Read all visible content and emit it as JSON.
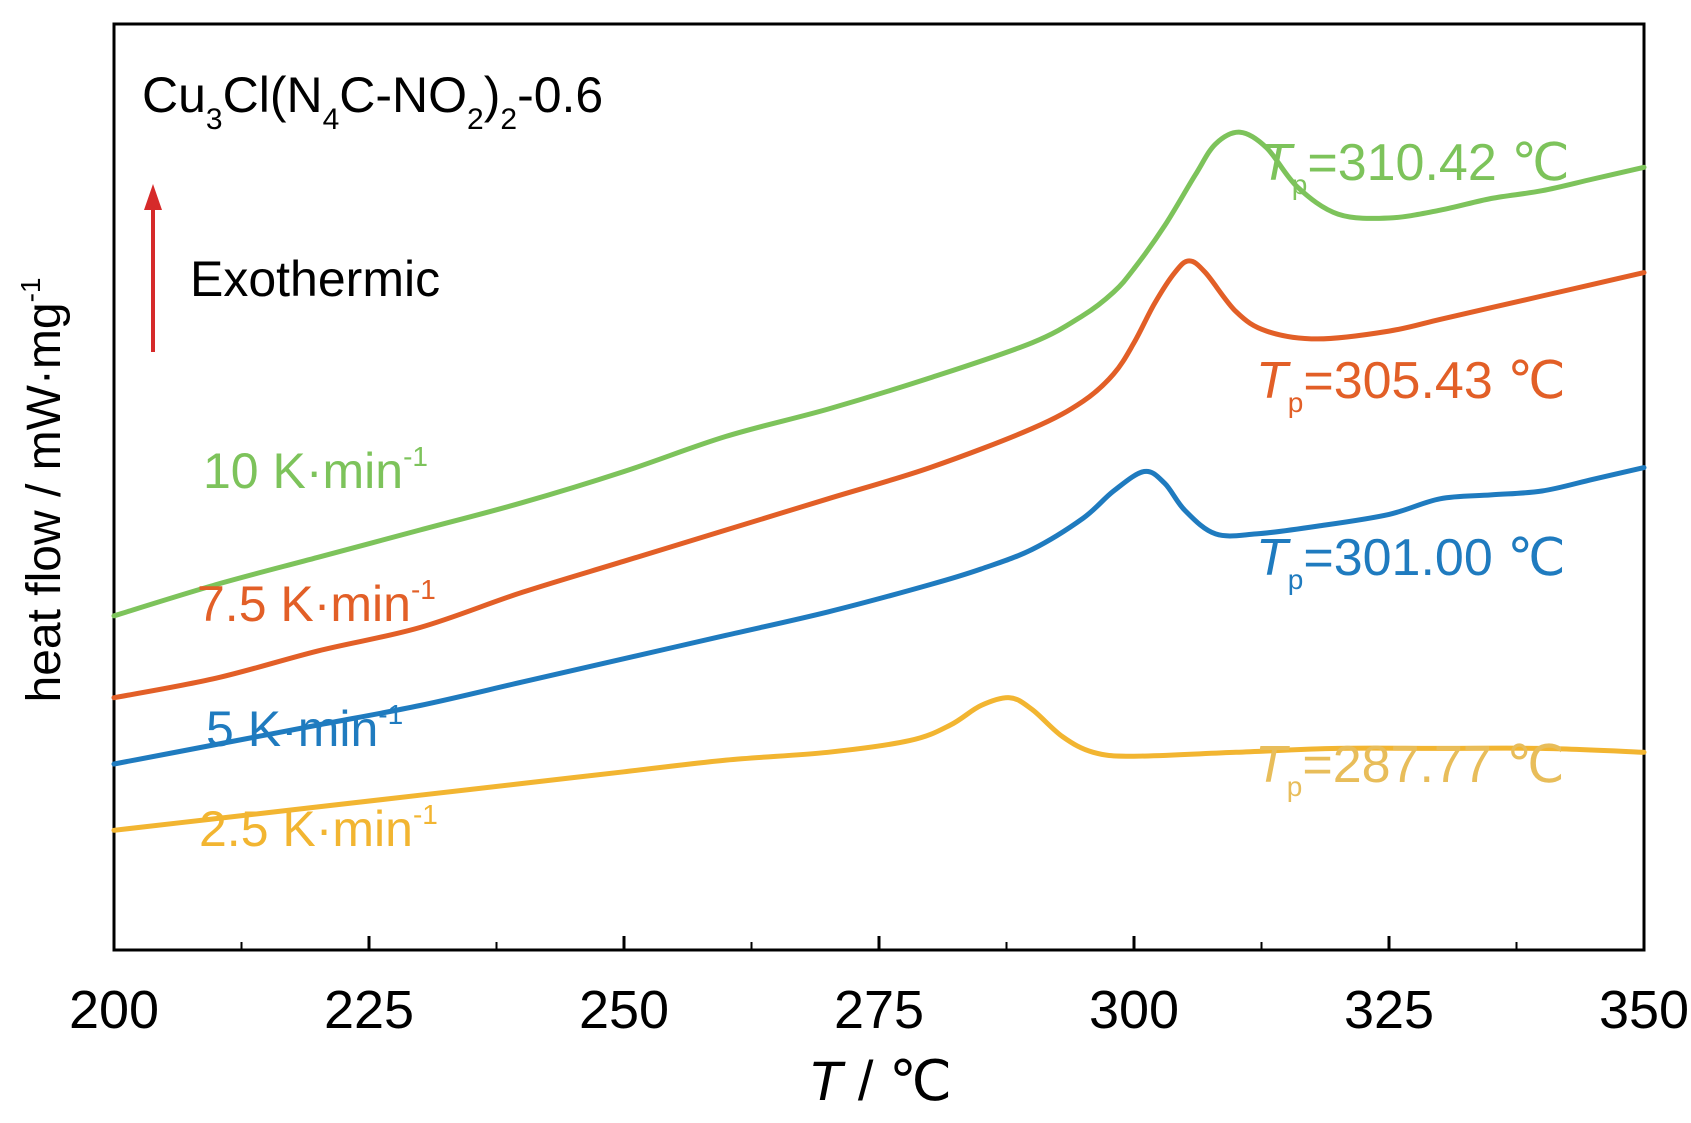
{
  "chart_data": {
    "type": "line",
    "title": "Cu3Cl(N4C-NO2)2-0.6",
    "title_parts": {
      "base": "Cu",
      "s1": "3",
      "mid1": "Cl(N",
      "s2": "4",
      "mid2": "C-NO",
      "s3": "2",
      "mid3": ")",
      "s4": "2",
      "tail": "-0.6"
    },
    "xlabel_italic": "T",
    "xlabel_rest": " / ℃",
    "ylabel": "heat flow / mW·mg",
    "ylabel_sup": "-1",
    "xlim": [
      200,
      350
    ],
    "ylim": [
      0,
      10
    ],
    "xticks": [
      "200",
      "225",
      "250",
      "275",
      "300",
      "325",
      "350"
    ],
    "annotation": {
      "text": "Exothermic",
      "color": "#d62a2a"
    },
    "series": [
      {
        "name": "10 K·min-1",
        "rate": "10 K·min",
        "sup": "-1",
        "color": "#7dc35b",
        "peak_T": "T",
        "peak_sub": "p",
        "peak_value": "=310.42 ℃",
        "x": [
          200,
          210,
          220,
          230,
          240,
          250,
          260,
          270,
          280,
          290,
          295,
          298,
          300,
          303,
          306,
          308,
          310.4,
          313,
          316,
          320,
          325,
          330,
          335,
          340,
          345,
          350
        ],
        "y": [
          3.9,
          4.3,
          4.65,
          5.0,
          5.35,
          5.75,
          6.2,
          6.55,
          6.95,
          7.4,
          7.75,
          8.05,
          8.35,
          8.9,
          9.55,
          9.95,
          10.1,
          9.9,
          9.4,
          9.05,
          9.0,
          9.1,
          9.25,
          9.35,
          9.5,
          9.65
        ]
      },
      {
        "name": "7.5 K·min-1",
        "rate": "7.5 K·min",
        "sup": "-1",
        "color": "#e25f27",
        "peak_T": "T",
        "peak_sub": "p",
        "peak_value": "=305.43 ℃",
        "x": [
          200,
          210,
          220,
          230,
          240,
          250,
          260,
          270,
          280,
          290,
          295,
          298,
          300,
          302,
          304,
          305.4,
          307,
          310,
          313,
          318,
          325,
          330,
          335,
          340,
          345,
          350
        ],
        "y": [
          2.85,
          3.1,
          3.45,
          3.75,
          4.2,
          4.6,
          5.0,
          5.4,
          5.8,
          6.3,
          6.65,
          7.0,
          7.4,
          7.9,
          8.3,
          8.45,
          8.3,
          7.8,
          7.55,
          7.45,
          7.55,
          7.7,
          7.85,
          8.0,
          8.15,
          8.3
        ]
      },
      {
        "name": "5 K·min-1",
        "rate": "5 K·min",
        "sup": "-1",
        "color": "#1f7bbf",
        "peak_T": "T",
        "peak_sub": "p",
        "peak_value": "=301.00 ℃",
        "x": [
          200,
          210,
          220,
          230,
          240,
          250,
          260,
          270,
          280,
          285,
          290,
          295,
          298,
          301,
          303,
          305,
          308,
          312,
          318,
          325,
          330,
          335,
          340,
          345,
          350
        ],
        "y": [
          2.0,
          2.25,
          2.5,
          2.75,
          3.05,
          3.35,
          3.65,
          3.95,
          4.3,
          4.5,
          4.75,
          5.15,
          5.5,
          5.75,
          5.6,
          5.25,
          4.95,
          4.95,
          5.05,
          5.2,
          5.4,
          5.45,
          5.5,
          5.65,
          5.8
        ]
      },
      {
        "name": "2.5 K·min-1",
        "rate": "2.5 K·min",
        "sup": "-1",
        "color": "#f2b531",
        "peak_T": "T",
        "peak_sub": "p",
        "peak_value": "=287.77 ℃",
        "x": [
          200,
          210,
          220,
          230,
          240,
          250,
          260,
          270,
          278,
          282,
          285,
          287.8,
          290,
          293,
          296,
          300,
          310,
          320,
          330,
          340,
          350
        ],
        "y": [
          1.15,
          1.3,
          1.45,
          1.6,
          1.75,
          1.9,
          2.05,
          2.15,
          2.3,
          2.5,
          2.75,
          2.85,
          2.7,
          2.35,
          2.15,
          2.1,
          2.15,
          2.2,
          2.2,
          2.2,
          2.15
        ]
      }
    ]
  }
}
